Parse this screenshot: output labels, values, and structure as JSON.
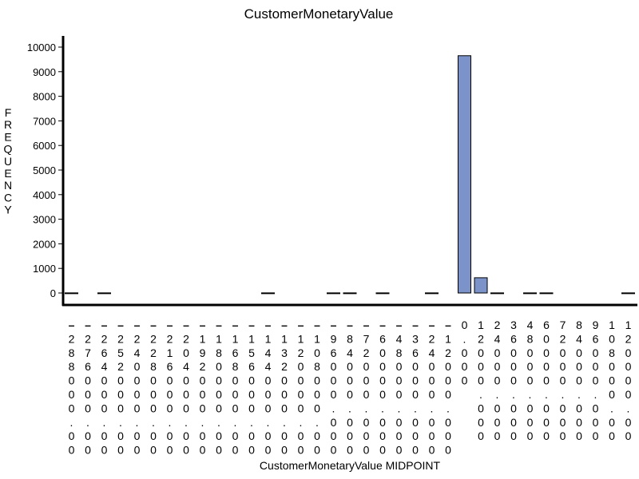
{
  "chart_data": {
    "type": "bar",
    "title": "CustomerMonetaryValue",
    "xlabel": "CustomerMonetaryValue  MIDPOINT",
    "ylabel": "FREQUENCY",
    "ylim": [
      0,
      10000
    ],
    "yticks": [
      "0",
      "1000",
      "2000",
      "3000",
      "4000",
      "5000",
      "6000",
      "7000",
      "8000",
      "9000",
      "10000"
    ],
    "grid": false,
    "bar_color": "#7b93c9",
    "categories": [
      "-288000.00",
      "-276000.00",
      "-264000.00",
      "-252000.00",
      "-240000.00",
      "-228000.00",
      "-216000.00",
      "-204000.00",
      "-192000.00",
      "-180000.00",
      "-168000.00",
      "-156000.00",
      "-144000.00",
      "-132000.00",
      "-120000.00",
      "-108000.00",
      "-96000.000",
      "-84000.000",
      "-72000.000",
      "-60000.000",
      "-48000.000",
      "-36000.000",
      "-24000.000",
      "-12000.000",
      "0.000",
      "12000.000",
      "24000.000",
      "36000.000",
      "48000.000",
      "60000.000",
      "72000.000",
      "84000.000",
      "96000.000",
      "108000.00",
      "120000.00"
    ],
    "values": [
      5,
      0,
      5,
      0,
      0,
      0,
      0,
      0,
      0,
      0,
      0,
      0,
      5,
      0,
      0,
      0,
      5,
      5,
      0,
      5,
      0,
      0,
      5,
      0,
      9650,
      620,
      5,
      0,
      5,
      5,
      0,
      0,
      0,
      0,
      5
    ]
  }
}
